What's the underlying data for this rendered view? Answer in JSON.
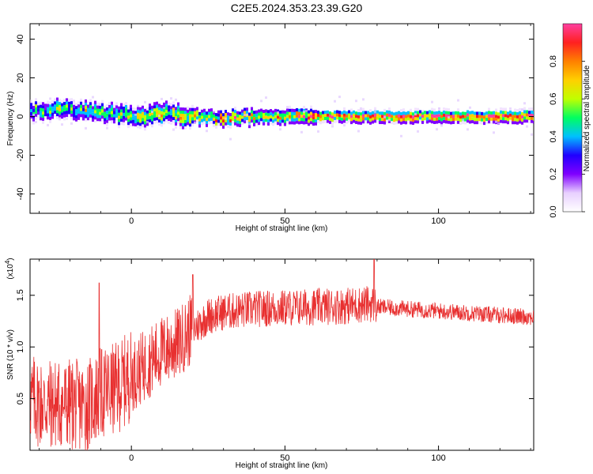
{
  "title": "C2E5.2024.353.23.39.G20",
  "chart_data": [
    {
      "id": "spectrogram",
      "type": "heatmap",
      "xlabel": "Height of straight line (km)",
      "ylabel": "Frequency (Hz)",
      "xlim": [
        -33,
        131
      ],
      "ylim": [
        -50,
        48
      ],
      "x_ticks": [
        0,
        50,
        100
      ],
      "y_ticks": [
        40,
        20,
        0,
        -20,
        -40
      ],
      "y_tick_labels": [
        "40",
        "20",
        "0",
        "-20",
        "-40"
      ],
      "colorbar": {
        "label": "Normalized spectral amplitude",
        "range": [
          0,
          1
        ],
        "ticks": [
          0.0,
          0.2,
          0.4,
          0.6,
          0.8
        ],
        "tick_labels": [
          "0.0",
          "0.2",
          "0.4",
          "0.6",
          "0.8"
        ],
        "colormap": [
          "#ffffff",
          "#e8d0ff",
          "#8000ff",
          "#2000ff",
          "#00c0ff",
          "#00ff60",
          "#c0ff00",
          "#ffd000",
          "#ff8000",
          "#ff2020",
          "#ff40a0"
        ]
      },
      "ridge": {
        "x": [
          -33,
          -25,
          -15,
          -5,
          0,
          5,
          10,
          15,
          20,
          30,
          40,
          50,
          60,
          70,
          80,
          90,
          100,
          110,
          120,
          131
        ],
        "y": [
          3,
          4,
          3,
          1,
          1,
          0,
          2,
          1,
          0,
          -1,
          0,
          0,
          0,
          0,
          0,
          0,
          0,
          0,
          0,
          0
        ]
      }
    },
    {
      "id": "snr",
      "type": "line",
      "xlabel": "Height of straight line (km)",
      "ylabel": "SNR (10 * v/v)",
      "y_multiplier": "(x10^4)",
      "xlim": [
        -33,
        131
      ],
      "ylim": [
        0.0,
        1.85
      ],
      "x_ticks": [
        0,
        50,
        100
      ],
      "y_ticks": [
        0.5,
        1.0,
        1.5
      ],
      "y_tick_labels": [
        "0.5",
        "1.0",
        "1.5"
      ],
      "color": "#e83030",
      "envelope": {
        "x": [
          -33,
          -28,
          -20,
          -15,
          -10,
          -5,
          0,
          5,
          10,
          15,
          20,
          25,
          30,
          40,
          50,
          60,
          70,
          78,
          80,
          90,
          100,
          110,
          120,
          131
        ],
        "y": [
          0.45,
          0.4,
          0.4,
          0.38,
          0.5,
          0.55,
          0.68,
          0.8,
          0.92,
          1.0,
          1.15,
          1.28,
          1.32,
          1.35,
          1.36,
          1.37,
          1.38,
          1.4,
          1.38,
          1.36,
          1.34,
          1.32,
          1.3,
          1.28
        ]
      },
      "spikes": [
        {
          "x": -10.5,
          "y": 1.62
        },
        {
          "x": 20,
          "y": 1.7
        },
        {
          "x": 79,
          "y": 1.85
        }
      ]
    }
  ]
}
